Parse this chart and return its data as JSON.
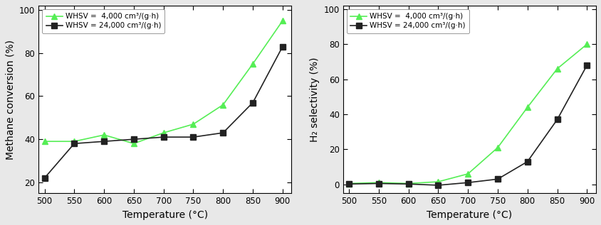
{
  "left": {
    "ylabel": "Methane conversion (%)",
    "xlabel": "Temperature (°C)",
    "ylim": [
      15,
      102
    ],
    "yticks": [
      20,
      40,
      60,
      80,
      100
    ],
    "xlim": [
      490,
      915
    ],
    "xticks": [
      500,
      550,
      600,
      650,
      700,
      750,
      800,
      850,
      900
    ],
    "series": [
      {
        "label": "WHSV =  4,000 cm³/(g·h)",
        "color": "#55ee55",
        "marker": "^",
        "x": [
          500,
          550,
          600,
          650,
          700,
          750,
          800,
          850,
          900
        ],
        "y": [
          39,
          39,
          42,
          38,
          43,
          47,
          56,
          75,
          95
        ]
      },
      {
        "label": "WHSV = 24,000 cm³/(g·h)",
        "color": "#222222",
        "marker": "s",
        "x": [
          500,
          550,
          600,
          650,
          700,
          750,
          800,
          850,
          900
        ],
        "y": [
          22,
          38,
          39,
          40,
          41,
          41,
          43,
          57,
          83
        ]
      }
    ]
  },
  "right": {
    "ylabel": "H₂ selectivity (%)",
    "xlabel": "Temperature (°C)",
    "ylim": [
      -5,
      102
    ],
    "yticks": [
      0,
      20,
      40,
      60,
      80,
      100
    ],
    "xlim": [
      490,
      915
    ],
    "xticks": [
      500,
      550,
      600,
      650,
      700,
      750,
      800,
      850,
      900
    ],
    "series": [
      {
        "label": "WHSV =  4,000 cm³/(g·h)",
        "color": "#55ee55",
        "marker": "^",
        "x": [
          500,
          550,
          600,
          650,
          700,
          750,
          800,
          850,
          900
        ],
        "y": [
          0.5,
          1.0,
          0.5,
          1.5,
          6,
          21,
          44,
          66,
          80
        ]
      },
      {
        "label": "WHSV = 24,000 cm³/(g·h)",
        "color": "#222222",
        "marker": "s",
        "x": [
          500,
          550,
          600,
          650,
          700,
          750,
          800,
          850,
          900
        ],
        "y": [
          0.2,
          0.5,
          0.2,
          -0.5,
          1.0,
          3.0,
          13,
          37,
          68
        ]
      }
    ]
  },
  "legend_fontsize": 7.5,
  "tick_fontsize": 8.5,
  "label_fontsize": 10,
  "marker_size": 6,
  "line_width": 1.2,
  "fig_facecolor": "#e8e8e8",
  "axes_facecolor": "#ffffff",
  "spine_color": "#000000"
}
